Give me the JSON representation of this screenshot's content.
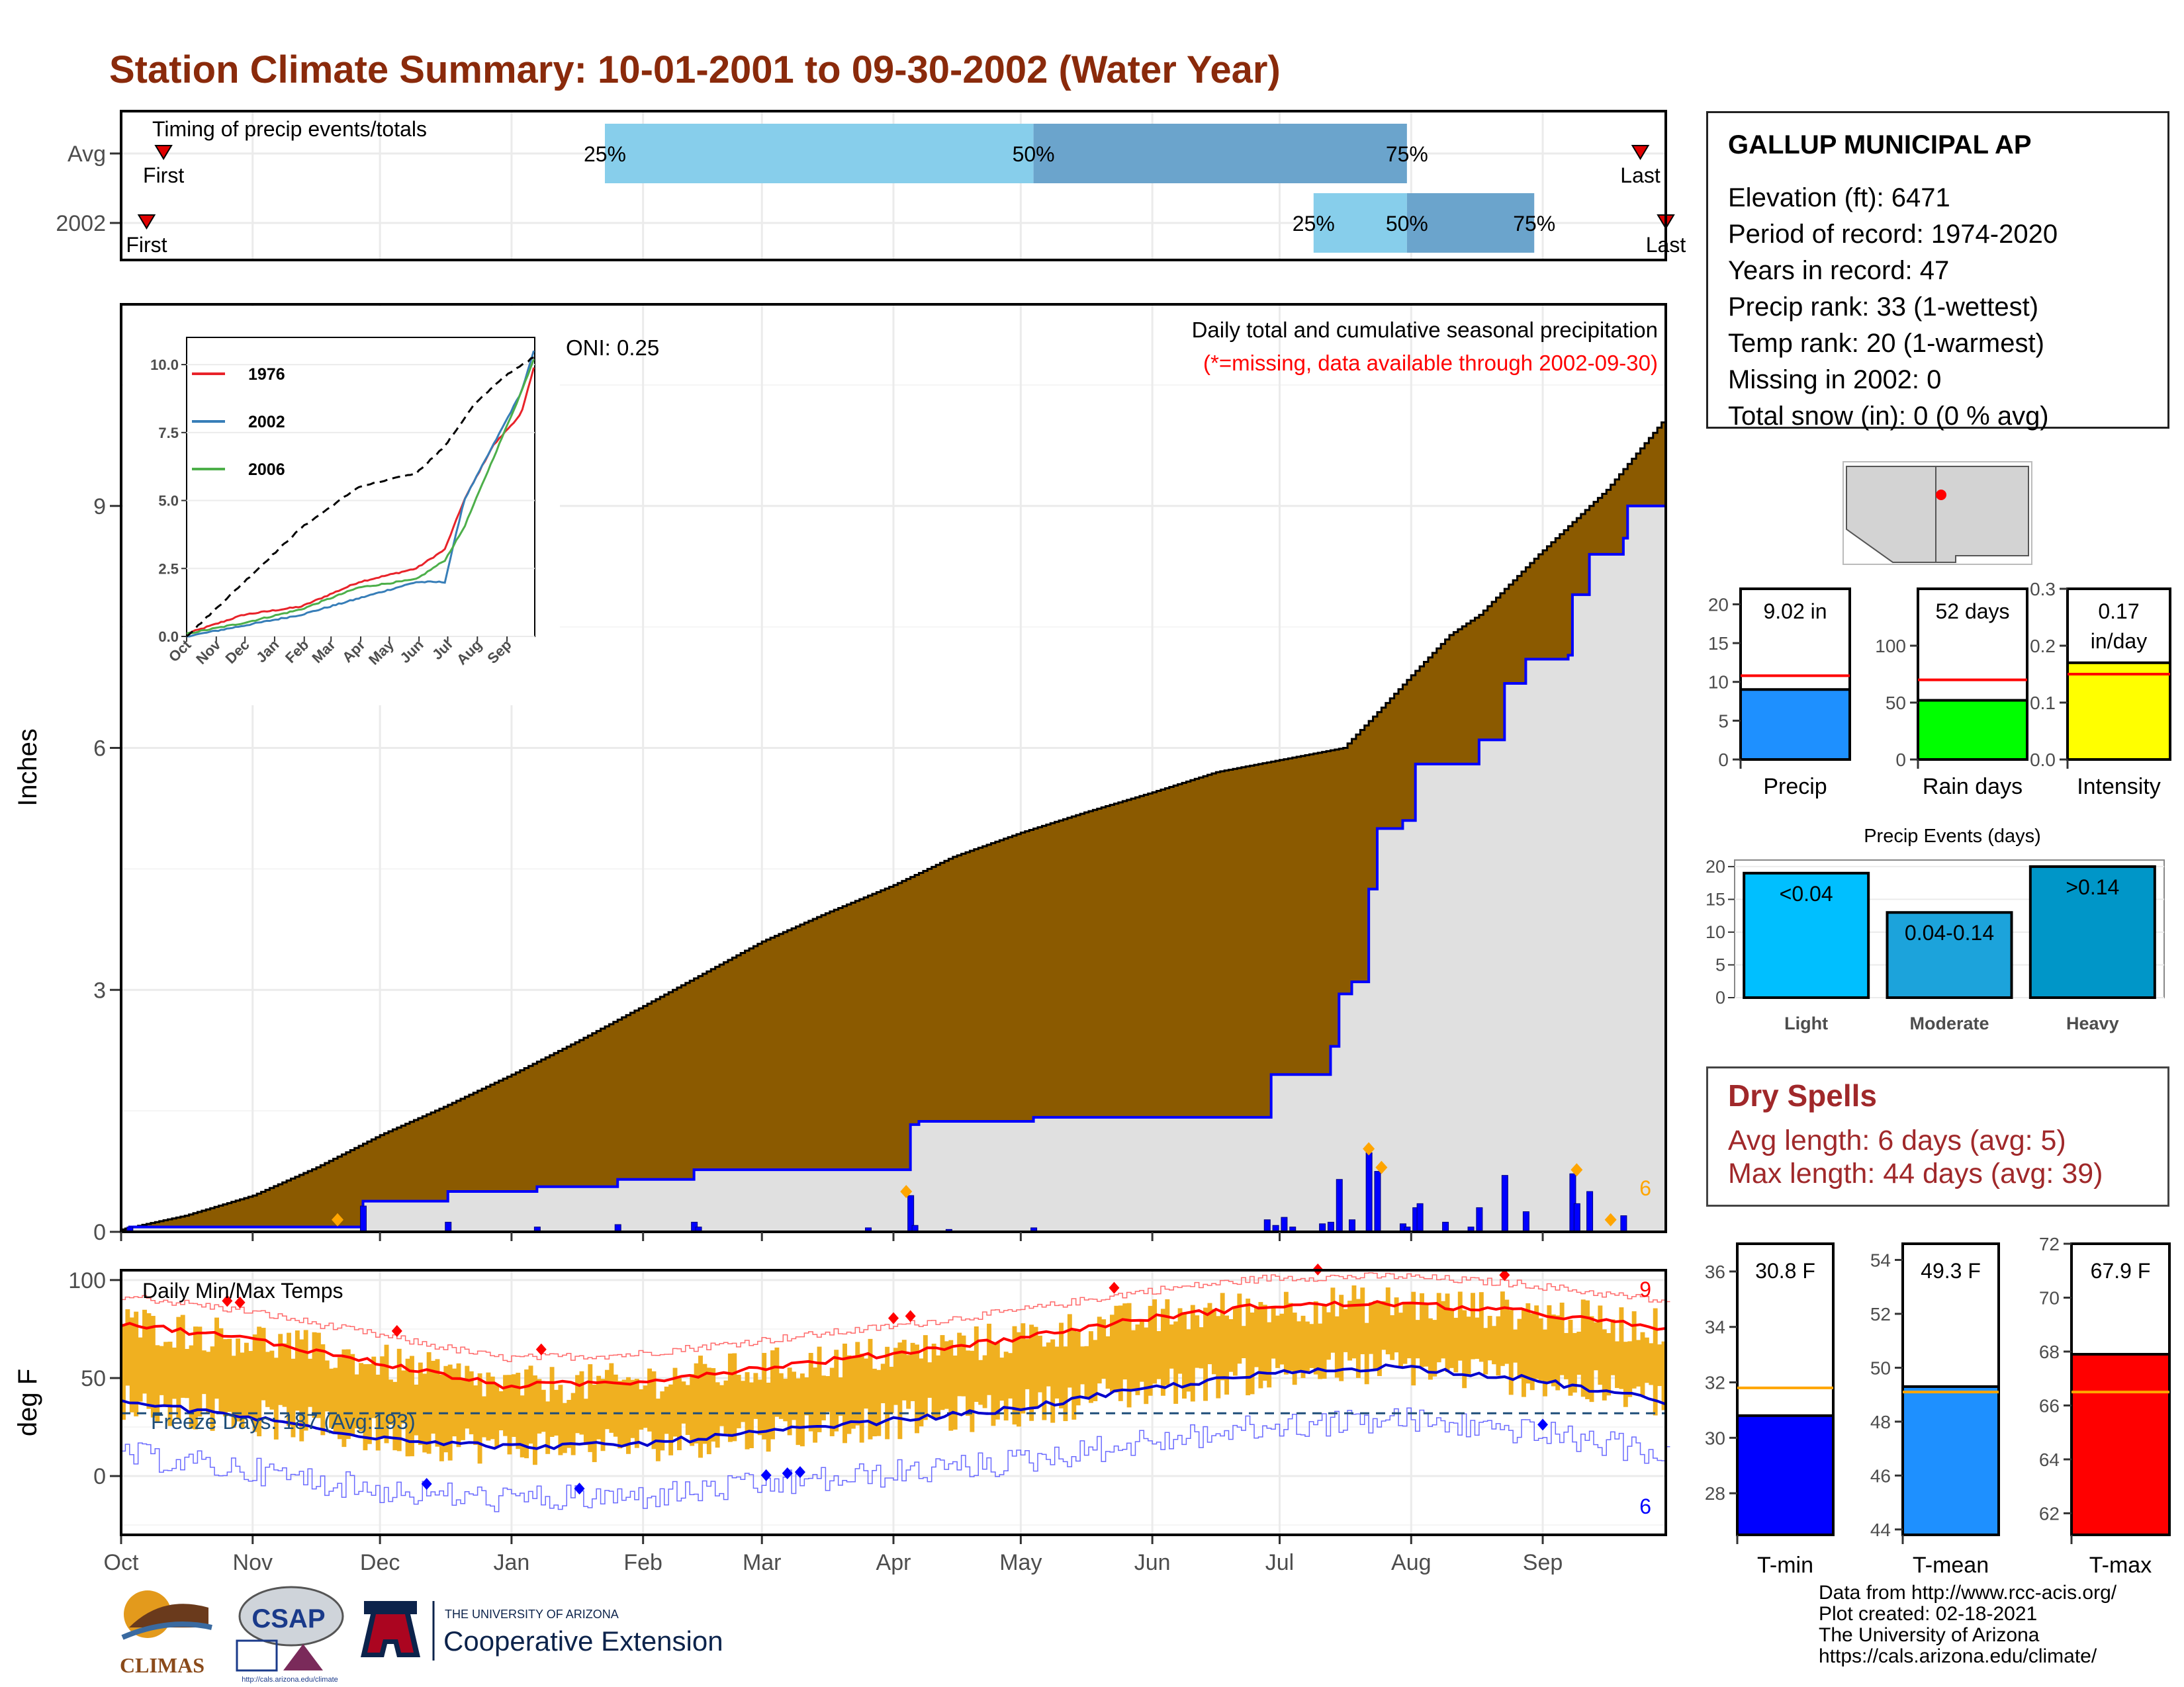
{
  "title": "Station Climate Summary: 10-01-2001 to 09-30-2002 (Water Year)",
  "station": {
    "name": "GALLUP MUNICIPAL AP",
    "rows": [
      "Elevation (ft): 6471",
      "Period of record: 1974-2020",
      "Years in record: 47",
      "Precip rank: 33 (1-wettest)",
      "Temp rank: 20 (1-warmest)",
      "Missing in 2002: 0",
      "Total snow (in): 0 (0 % avg)"
    ]
  },
  "colors": {
    "cumulative_fill": "#8b5a00",
    "avg_fill": "#e0e0e0",
    "precip_bar": "#0000ff",
    "light_bar": "#00bfff",
    "moderate_bar": "#1ca3db",
    "heavy_bar": "#0096c8",
    "temp_bar": "#f0b020",
    "tmax_line": "#ff0000",
    "tmin_line": "#0000cc"
  },
  "chart_data": [
    {
      "type": "bar",
      "name": "timing",
      "title": "Timing of precip events/totals",
      "rows": [
        "Avg",
        "2002"
      ],
      "markers": [
        {
          "row": "Avg",
          "first": "First",
          "last": "Last",
          "p25": "25%",
          "p50": "50%",
          "p75": "75%",
          "first_date": "2001-10-11",
          "last_date": "2002-09-24",
          "p25_date": "2002-01-23",
          "p50_date": "2002-05-04",
          "p75_date": "2002-07-31"
        },
        {
          "row": "2002",
          "first": "First",
          "last": "Last",
          "p25": "25%",
          "p50": "50%",
          "p75": "75%",
          "first_date": "2001-10-07",
          "last_date": "2002-09-30",
          "p25_date": "2002-07-09",
          "p50_date": "2002-07-31",
          "p75_date": "2002-08-30"
        }
      ]
    },
    {
      "type": "area",
      "name": "precipitation",
      "title": "Daily total and cumulative seasonal precipitation",
      "subtitle": "(*=missing, data available through 2002-09-30)",
      "ylabel": "Inches",
      "ylim": [
        0,
        11.5
      ],
      "yticks": [
        0,
        3,
        6,
        9
      ],
      "xticks": [
        "Oct",
        "Nov",
        "Dec",
        "Jan",
        "Feb",
        "Mar",
        "Apr",
        "May",
        "Jun",
        "Jul",
        "Aug",
        "Sep"
      ],
      "oni": "ONI: 0.25",
      "extreme_count": "6",
      "avg_cumulative": [
        [
          0,
          0.03
        ],
        [
          15,
          0.2
        ],
        [
          31,
          0.45
        ],
        [
          46,
          0.8
        ],
        [
          61,
          1.2
        ],
        [
          76,
          1.55
        ],
        [
          92,
          1.95
        ],
        [
          107,
          2.35
        ],
        [
          123,
          2.8
        ],
        [
          137,
          3.2
        ],
        [
          151,
          3.6
        ],
        [
          166,
          3.95
        ],
        [
          182,
          4.3
        ],
        [
          196,
          4.65
        ],
        [
          212,
          4.95
        ],
        [
          227,
          5.2
        ],
        [
          243,
          5.45
        ],
        [
          258,
          5.7
        ],
        [
          273,
          5.85
        ],
        [
          288,
          6.0
        ],
        [
          297,
          6.5
        ],
        [
          304,
          6.9
        ],
        [
          313,
          7.4
        ],
        [
          320,
          7.65
        ],
        [
          334,
          8.4
        ],
        [
          350,
          9.2
        ],
        [
          364,
          10.1
        ]
      ],
      "cumulative_2002": [
        [
          0,
          0
        ],
        [
          2,
          0.06
        ],
        [
          56,
          0.06
        ],
        [
          57,
          0.38
        ],
        [
          76,
          0.38
        ],
        [
          77,
          0.5
        ],
        [
          97,
          0.5
        ],
        [
          98,
          0.56
        ],
        [
          116,
          0.56
        ],
        [
          117,
          0.65
        ],
        [
          134,
          0.65
        ],
        [
          135,
          0.77
        ],
        [
          185,
          0.77
        ],
        [
          186,
          1.33
        ],
        [
          188,
          1.37
        ],
        [
          214,
          1.37
        ],
        [
          215,
          1.42
        ],
        [
          270,
          1.42
        ],
        [
          271,
          1.95
        ],
        [
          283,
          1.95
        ],
        [
          285,
          2.3
        ],
        [
          287,
          2.95
        ],
        [
          290,
          3.1
        ],
        [
          294,
          4.25
        ],
        [
          296,
          5.0
        ],
        [
          302,
          5.1
        ],
        [
          305,
          5.8
        ],
        [
          320,
          6.1
        ],
        [
          326,
          6.8
        ],
        [
          331,
          7.1
        ],
        [
          341,
          7.15
        ],
        [
          342,
          7.9
        ],
        [
          346,
          8.4
        ],
        [
          354,
          8.6
        ],
        [
          355,
          9.0
        ],
        [
          364,
          9.02
        ]
      ],
      "daily_2002": [
        [
          2,
          0.06
        ],
        [
          57,
          0.32
        ],
        [
          77,
          0.12
        ],
        [
          98,
          0.06
        ],
        [
          117,
          0.09
        ],
        [
          135,
          0.12
        ],
        [
          136,
          0.06
        ],
        [
          176,
          0.05
        ],
        [
          186,
          0.45
        ],
        [
          187,
          0.08
        ],
        [
          195,
          0.03
        ],
        [
          215,
          0.05
        ],
        [
          270,
          0.15
        ],
        [
          272,
          0.08
        ],
        [
          274,
          0.18
        ],
        [
          276,
          0.06
        ],
        [
          283,
          0.1
        ],
        [
          285,
          0.12
        ],
        [
          287,
          0.65
        ],
        [
          290,
          0.15
        ],
        [
          294,
          0.98
        ],
        [
          296,
          0.75
        ],
        [
          302,
          0.1
        ],
        [
          303,
          0.06
        ],
        [
          305,
          0.3
        ],
        [
          306,
          0.35
        ],
        [
          312,
          0.12
        ],
        [
          318,
          0.06
        ],
        [
          320,
          0.3
        ],
        [
          326,
          0.7
        ],
        [
          331,
          0.25
        ],
        [
          342,
          0.72
        ],
        [
          343,
          0.35
        ],
        [
          346,
          0.5
        ],
        [
          354,
          0.2
        ]
      ],
      "extreme_markers_days": [
        51,
        185,
        294,
        297,
        343,
        351
      ]
    },
    {
      "type": "line",
      "name": "inset",
      "series": [
        {
          "name": "1976",
          "color": "#e8232a",
          "values": [
            [
              0,
              0.1
            ],
            [
              60,
              0.8
            ],
            [
              120,
              1.1
            ],
            [
              180,
              2.0
            ],
            [
              240,
              2.5
            ],
            [
              270,
              3.2
            ],
            [
              290,
              5.0
            ],
            [
              320,
              7.0
            ],
            [
              350,
              8.2
            ],
            [
              364,
              10.0
            ]
          ]
        },
        {
          "name": "2002",
          "color": "#377eb8",
          "values": [
            [
              0,
              0.0
            ],
            [
              60,
              0.4
            ],
            [
              120,
              0.8
            ],
            [
              180,
              1.4
            ],
            [
              240,
              2.0
            ],
            [
              270,
              2.0
            ],
            [
              290,
              5.0
            ],
            [
              320,
              7.0
            ],
            [
              350,
              9.0
            ],
            [
              364,
              10.6
            ]
          ]
        },
        {
          "name": "2006",
          "color": "#4daf4a",
          "values": [
            [
              0,
              0.1
            ],
            [
              60,
              0.5
            ],
            [
              120,
              1.0
            ],
            [
              180,
              1.8
            ],
            [
              240,
              2.1
            ],
            [
              270,
              2.8
            ],
            [
              290,
              4.0
            ],
            [
              320,
              6.5
            ],
            [
              350,
              9.0
            ],
            [
              364,
              10.3
            ]
          ]
        }
      ],
      "avg": [
        [
          0,
          0.0
        ],
        [
          60,
          2.0
        ],
        [
          120,
          4.0
        ],
        [
          180,
          5.5
        ],
        [
          240,
          6.0
        ],
        [
          270,
          7.0
        ],
        [
          300,
          8.5
        ],
        [
          330,
          9.5
        ],
        [
          364,
          10.3
        ]
      ],
      "yticks": [
        "0.0",
        "2.5",
        "5.0",
        "7.5",
        "10.0"
      ],
      "xticks": [
        "Oct",
        "Nov",
        "Dec",
        "Jan",
        "Feb",
        "Mar",
        "Apr",
        "May",
        "Jun",
        "Jul",
        "Aug",
        "Sep"
      ]
    },
    {
      "type": "bar",
      "name": "gauges",
      "items": [
        {
          "label": "Precip",
          "value_text": "9.02 in",
          "value": 9.02,
          "avg": 10.8,
          "ymax": 22,
          "yticks": [
            0,
            5,
            10,
            15,
            20
          ],
          "color": "#1e90ff"
        },
        {
          "label": "Rain days",
          "value_text": "52 days",
          "value": 52,
          "avg": 70,
          "ymax": 150,
          "yticks": [
            0,
            50,
            100
          ],
          "color": "#00ff00"
        },
        {
          "label": "Intensity",
          "value_text": "0.17 in/day",
          "value": 0.17,
          "avg": 0.15,
          "ymax": 0.3,
          "yticks": [
            "0.0",
            "0.1",
            "0.2",
            "0.3"
          ],
          "color": "#ffff00"
        }
      ]
    },
    {
      "type": "bar",
      "name": "precip_events",
      "title": "Precip Events (days)",
      "categories": [
        "Light",
        "Moderate",
        "Heavy"
      ],
      "bar_labels": [
        "<0.04",
        "0.04-0.14",
        ">0.14"
      ],
      "values": [
        19,
        13,
        20
      ],
      "ylim": [
        0,
        21
      ],
      "yticks": [
        0,
        5,
        10,
        15,
        20
      ]
    },
    {
      "type": "line",
      "name": "temps",
      "title": "Daily Min/Max Temps",
      "ylabel": "deg F",
      "ylim": [
        -30,
        105
      ],
      "yticks": [
        0,
        50,
        100
      ],
      "freeze_text": "Freeze Days: 187 (Avg:193)",
      "freeze_line": 32,
      "tmax_extremes": "9",
      "tmin_extremes": "6",
      "xticks": [
        "Oct",
        "Nov",
        "Dec",
        "Jan",
        "Feb",
        "Mar",
        "Apr",
        "May",
        "Jun",
        "Jul",
        "Aug",
        "Sep"
      ],
      "tmax_avg": [
        [
          0,
          78
        ],
        [
          30,
          70
        ],
        [
          60,
          58
        ],
        [
          90,
          46
        ],
        [
          120,
          48
        ],
        [
          150,
          55
        ],
        [
          180,
          62
        ],
        [
          210,
          70
        ],
        [
          240,
          80
        ],
        [
          270,
          87
        ],
        [
          300,
          88
        ],
        [
          330,
          84
        ],
        [
          364,
          75
        ]
      ],
      "tmin_avg": [
        [
          0,
          38
        ],
        [
          30,
          30
        ],
        [
          60,
          20
        ],
        [
          90,
          15
        ],
        [
          120,
          16
        ],
        [
          150,
          22
        ],
        [
          180,
          28
        ],
        [
          210,
          34
        ],
        [
          240,
          44
        ],
        [
          270,
          52
        ],
        [
          300,
          56
        ],
        [
          330,
          50
        ],
        [
          364,
          38
        ]
      ],
      "tmax_extreme_days": [
        25,
        28,
        65,
        99,
        182,
        186,
        234,
        282,
        326
      ],
      "tmin_extreme_days": [
        72,
        108,
        152,
        157,
        160,
        335
      ]
    },
    {
      "type": "bar",
      "name": "temp_gauges",
      "items": [
        {
          "label": "T-min",
          "value_text": "30.8 F",
          "value": 30.8,
          "avg": 31.8,
          "ymin": 26.5,
          "ymax": 37,
          "yticks": [
            28,
            30,
            32,
            34,
            36
          ],
          "color": "#0000ff"
        },
        {
          "label": "T-mean",
          "value_text": "49.3 F",
          "value": 49.3,
          "avg": 49.1,
          "ymin": 43.8,
          "ymax": 54.6,
          "yticks": [
            44,
            46,
            48,
            50,
            52,
            54
          ],
          "color": "#1e90ff"
        },
        {
          "label": "T-max",
          "value_text": "67.9 F",
          "value": 67.9,
          "avg": 66.5,
          "ymin": 61.2,
          "ymax": 72,
          "yticks": [
            62,
            64,
            66,
            68,
            70,
            72
          ],
          "color": "#ff0000"
        }
      ]
    }
  ],
  "dry_spells": {
    "title": "Dry Spells",
    "avg_length": "Avg length: 6 days (avg: 5)",
    "max_length": "Max length: 44 days (avg: 39)"
  },
  "credits": [
    "Data from http://www.rcc-acis.org/",
    "Plot created: 02-18-2021",
    "The University of Arizona",
    "https://cals.arizona.edu/climate/"
  ],
  "logos": {
    "climas": "CLIMAS",
    "csap": "CSAP",
    "csap_url": "http://cals.arizona.edu/climate",
    "ua_top": "THE UNIVERSITY OF ARIZONA",
    "ua_bottom": "Cooperative Extension"
  }
}
